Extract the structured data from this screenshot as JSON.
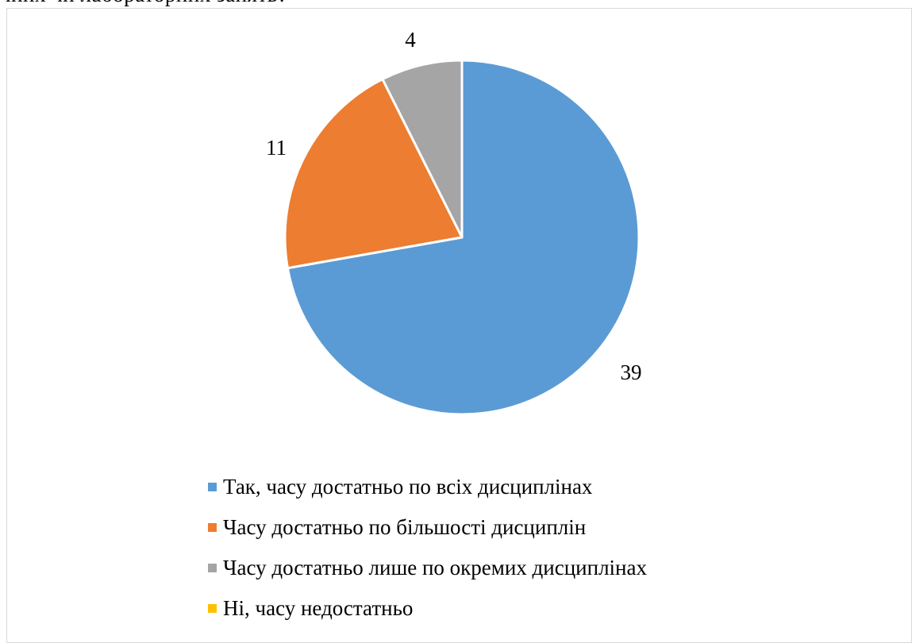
{
  "header_text": "чних чи лабораторних занять?",
  "chart_data": {
    "type": "pie",
    "start_angle_deg": 0,
    "direction": "clockwise",
    "slices": [
      {
        "label": "Так, часу достатньо по всіх дисциплінах",
        "value": 39,
        "color": "#5b9bd5",
        "data_label": "39"
      },
      {
        "label": "Часу достатньо по більшості дисциплін",
        "value": 11,
        "color": "#ed7d31",
        "data_label": "11"
      },
      {
        "label": "Часу достатньо лише по окремих дисциплінах",
        "value": 4,
        "color": "#a5a5a5",
        "data_label": "4"
      },
      {
        "label": "Ні, часу недостатньо",
        "value": 0,
        "color": "#ffc000",
        "data_label": ""
      }
    ],
    "legend_position": "bottom"
  }
}
